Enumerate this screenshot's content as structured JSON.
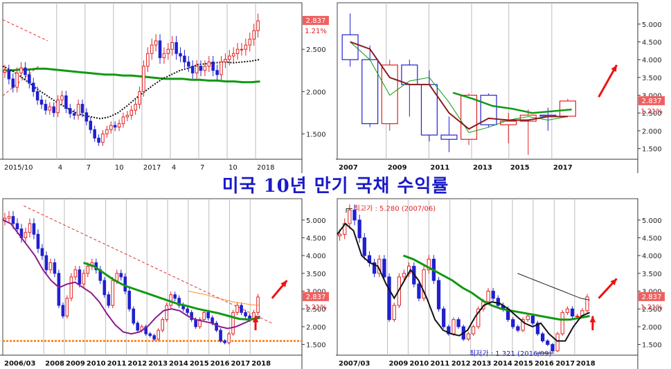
{
  "title": "미국 10년 만기 국채 수익률",
  "last_price": "2.837",
  "change_pct": "1.21%",
  "colors": {
    "up": "#e02020",
    "down": "#2020d0",
    "ma_long": "#119911",
    "ma_mid": "#8a1a8a",
    "ma_dark": "#8b1a1a",
    "trend": "#e03030",
    "grid": "#bbbbbb",
    "title": "#1a1ac8"
  },
  "chart_data": [
    {
      "id": "daily",
      "type": "candlestick",
      "title": "",
      "x_ticks": [
        "2015/10",
        "4",
        "7",
        "10",
        "2017",
        "4",
        "7",
        "10",
        "2018"
      ],
      "y_ticks": [
        "2.500",
        "2.000",
        "1.500"
      ],
      "ylim": [
        1.2,
        3.05
      ],
      "last": 2.837,
      "closes": [
        2.25,
        2.15,
        2.05,
        2.22,
        2.28,
        2.2,
        2.1,
        2.0,
        1.9,
        1.85,
        1.78,
        1.82,
        1.75,
        1.9,
        1.95,
        1.8,
        1.74,
        1.72,
        1.85,
        1.75,
        1.65,
        1.55,
        1.45,
        1.4,
        1.5,
        1.55,
        1.6,
        1.58,
        1.62,
        1.7,
        1.72,
        1.78,
        1.85,
        2.0,
        2.3,
        2.45,
        2.55,
        2.6,
        2.4,
        2.45,
        2.5,
        2.58,
        2.45,
        2.42,
        2.35,
        2.3,
        2.22,
        2.3,
        2.25,
        2.3,
        2.35,
        2.25,
        2.2,
        2.35,
        2.38,
        2.42,
        2.45,
        2.5,
        2.5,
        2.55,
        2.62,
        2.72,
        2.837
      ],
      "ma_green": [
        2.25,
        2.25,
        2.26,
        2.26,
        2.27,
        2.27,
        2.26,
        2.25,
        2.24,
        2.23,
        2.22,
        2.21,
        2.2,
        2.2,
        2.19,
        2.19,
        2.18,
        2.17,
        2.16,
        2.15,
        2.15,
        2.15,
        2.14,
        2.14,
        2.13,
        2.13,
        2.12,
        2.12,
        2.11,
        2.11,
        2.12
      ],
      "ma_black": [
        2.3,
        2.25,
        2.18,
        2.1,
        2.02,
        1.95,
        1.88,
        1.82,
        1.76,
        1.72,
        1.7,
        1.68,
        1.7,
        1.75,
        1.83,
        1.92,
        2.0,
        2.08,
        2.15,
        2.2,
        2.25,
        2.28,
        2.32,
        2.33,
        2.34,
        2.35,
        2.34,
        2.35,
        2.36,
        2.38
      ],
      "trend_lines": [
        [
          [
            0.0,
            2.85
          ],
          [
            0.15,
            2.6
          ]
        ],
        [
          [
            0.0,
            1.95
          ],
          [
            0.12,
            2.3
          ]
        ]
      ],
      "arrow": false
    },
    {
      "id": "yearly",
      "type": "candlestick",
      "title": "",
      "x_ticks": [
        "2007",
        "2009",
        "2011",
        "2013",
        "2015",
        "2017"
      ],
      "y_ticks": [
        "5.000",
        "4.500",
        "4.000",
        "3.500",
        "3.000",
        "2.500",
        "2.000",
        "1.500"
      ],
      "ylim": [
        1.2,
        5.6
      ],
      "last": 2.837,
      "candles": [
        {
          "o": 4.7,
          "h": 5.3,
          "l": 3.8,
          "c": 4.0
        },
        {
          "o": 4.0,
          "h": 4.4,
          "l": 2.1,
          "c": 2.2
        },
        {
          "o": 2.2,
          "h": 4.0,
          "l": 2.0,
          "c": 3.85
        },
        {
          "o": 3.85,
          "h": 4.0,
          "l": 2.4,
          "c": 3.3
        },
        {
          "o": 3.3,
          "h": 3.7,
          "l": 1.7,
          "c": 1.88
        },
        {
          "o": 1.88,
          "h": 2.4,
          "l": 1.4,
          "c": 1.76
        },
        {
          "o": 1.76,
          "h": 3.05,
          "l": 1.6,
          "c": 3.0
        },
        {
          "o": 3.0,
          "h": 3.05,
          "l": 2.1,
          "c": 2.17
        },
        {
          "o": 2.17,
          "h": 2.5,
          "l": 1.65,
          "c": 2.27
        },
        {
          "o": 2.27,
          "h": 2.6,
          "l": 1.32,
          "c": 2.44
        },
        {
          "o": 2.44,
          "h": 2.65,
          "l": 2.0,
          "c": 2.41
        },
        {
          "o": 2.41,
          "h": 2.9,
          "l": 2.4,
          "c": 2.837
        }
      ],
      "ma_dark": [
        4.5,
        4.3,
        3.5,
        3.3,
        3.3,
        2.5,
        2.05,
        2.35,
        2.3,
        2.3,
        2.4,
        2.4
      ],
      "ma_green_thin": [
        4.5,
        4.0,
        3.0,
        3.4,
        3.5,
        2.8,
        1.95,
        2.1,
        2.3,
        2.4,
        2.3,
        2.4
      ],
      "ma_thick_green": [
        3.07,
        2.9,
        2.7,
        2.62,
        2.5,
        2.55,
        2.6
      ]
    },
    {
      "id": "weekly",
      "type": "candlestick",
      "title": "",
      "x_ticks": [
        "2006/03",
        "2008",
        "2009",
        "2010",
        "2011",
        "2012",
        "2013",
        "2014",
        "2015",
        "2016",
        "2017",
        "2018"
      ],
      "y_ticks": [
        "5.000",
        "4.500",
        "4.000",
        "3.500",
        "3.000",
        "2.500",
        "2.000",
        "1.500"
      ],
      "ylim": [
        1.2,
        5.6
      ],
      "last": 2.837,
      "closes": [
        5.05,
        5.1,
        4.9,
        4.75,
        4.5,
        4.65,
        4.9,
        4.6,
        4.2,
        4.0,
        3.6,
        3.8,
        3.5,
        2.6,
        2.3,
        2.8,
        3.4,
        3.6,
        3.2,
        3.5,
        3.7,
        3.8,
        3.6,
        3.3,
        2.9,
        2.6,
        3.3,
        3.5,
        3.4,
        3.0,
        2.5,
        2.1,
        1.9,
        2.0,
        1.8,
        1.75,
        1.65,
        1.9,
        2.2,
        2.6,
        2.9,
        2.8,
        2.6,
        2.5,
        2.4,
        2.2,
        2.0,
        2.2,
        2.4,
        2.25,
        2.1,
        1.9,
        1.6,
        1.55,
        1.8,
        2.4,
        2.6,
        2.4,
        2.3,
        2.2,
        2.4,
        2.837
      ],
      "ma_purple": [
        5.0,
        4.9,
        4.6,
        4.3,
        4.0,
        3.6,
        3.3,
        3.1,
        3.2,
        3.25,
        3.1,
        2.95,
        2.7,
        2.35,
        2.05,
        1.85,
        1.8,
        1.85,
        2.0,
        2.25,
        2.45,
        2.5,
        2.45,
        2.3,
        2.2,
        2.15,
        2.1,
        2.0,
        1.95,
        2.0,
        2.1,
        2.2,
        2.3
      ],
      "ma_green": [
        3.8,
        3.7,
        3.5,
        3.3,
        3.15,
        3.05,
        2.95,
        2.85,
        2.75,
        2.65,
        2.58,
        2.5,
        2.44,
        2.38,
        2.3,
        2.22,
        2.2,
        2.25
      ],
      "ma_orange": [
        3.0,
        2.95,
        2.9,
        2.82,
        2.76,
        2.7,
        2.66,
        2.62,
        2.6
      ],
      "trend_line": [
        [
          0.07,
          5.4
        ],
        [
          0.9,
          2.1
        ]
      ],
      "support": 1.6,
      "arrow": true
    },
    {
      "id": "monthly",
      "type": "candlestick",
      "title": "",
      "x_ticks": [
        "2007/03",
        "2009",
        "2010",
        "2011",
        "2012",
        "2013",
        "2014",
        "2015",
        "2016",
        "2017",
        "2018"
      ],
      "y_ticks": [
        "5.000",
        "4.500",
        "4.000",
        "3.500",
        "3.000",
        "2.500",
        "2.000",
        "1.500"
      ],
      "ylim": [
        1.2,
        5.6
      ],
      "last": 2.837,
      "high_label": "최고가 : 5.280 (2007/06)",
      "low_label": "최저가 : 1.321 (2016/09)",
      "closes": [
        4.6,
        4.9,
        5.28,
        5.0,
        4.5,
        4.0,
        3.8,
        3.5,
        3.9,
        3.4,
        2.2,
        2.6,
        3.4,
        3.5,
        3.7,
        3.2,
        2.8,
        3.6,
        3.9,
        3.3,
        2.5,
        2.0,
        1.8,
        2.2,
        2.0,
        1.65,
        1.8,
        2.0,
        2.5,
        2.7,
        3.0,
        2.8,
        2.6,
        2.5,
        2.2,
        2.0,
        1.9,
        2.2,
        2.3,
        2.1,
        1.8,
        1.6,
        1.5,
        1.32,
        1.8,
        2.4,
        2.5,
        2.3,
        2.3,
        2.45,
        2.837
      ],
      "ma_black": [
        4.6,
        4.9,
        4.7,
        4.0,
        3.8,
        3.7,
        3.2,
        2.8,
        3.2,
        3.6,
        3.3,
        2.8,
        2.2,
        1.9,
        1.8,
        1.75,
        1.9,
        2.3,
        2.6,
        2.7,
        2.65,
        2.5,
        2.3,
        2.1,
        2.0,
        2.1,
        1.8,
        1.6,
        1.6,
        2.0,
        2.3,
        2.4
      ],
      "ma_green": [
        4.0,
        3.9,
        3.75,
        3.6,
        3.45,
        3.3,
        3.1,
        2.95,
        2.75,
        2.6,
        2.5,
        2.45,
        2.4,
        2.35,
        2.3,
        2.25,
        2.2,
        2.2,
        2.25,
        2.3
      ],
      "ma_thin": [
        3.5,
        3.4,
        3.3,
        3.2,
        3.1,
        3.0,
        2.9,
        2.8,
        2.75
      ],
      "arrow": true
    }
  ]
}
